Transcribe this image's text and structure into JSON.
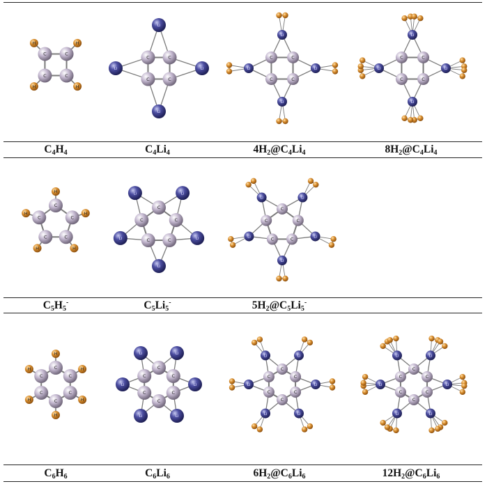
{
  "colors": {
    "carbon": "#c4b8d0",
    "lithium": "#4d4fa3",
    "hydrogen": "#d98e2e",
    "bond": "#7a7a7a"
  },
  "atom_letters": {
    "carbon": "C",
    "lithium": "Li",
    "hydrogen": "H"
  },
  "rows": [
    {
      "cells": [
        {
          "key": "c4h4",
          "label": {
            "parts": [
              [
                "C",
                ""
              ],
              [
                "4",
                "sub"
              ],
              [
                "H",
                ""
              ],
              [
                "4",
                "sub"
              ]
            ]
          }
        },
        {
          "key": "c4li4",
          "label": {
            "parts": [
              [
                "C",
                ""
              ],
              [
                "4",
                "sub"
              ],
              [
                "Li",
                ""
              ],
              [
                "4",
                "sub"
              ]
            ]
          }
        },
        {
          "key": "h4c4li4",
          "label": {
            "parts": [
              [
                "4H",
                ""
              ],
              [
                "2",
                "sub"
              ],
              [
                "@C",
                ""
              ],
              [
                "4",
                "sub"
              ],
              [
                "Li",
                ""
              ],
              [
                "4",
                "sub"
              ]
            ]
          }
        },
        {
          "key": "h8c4li4",
          "label": {
            "parts": [
              [
                "8H",
                ""
              ],
              [
                "2",
                "sub"
              ],
              [
                "@C",
                ""
              ],
              [
                "4",
                "sub"
              ],
              [
                "Li",
                ""
              ],
              [
                "4",
                "sub"
              ]
            ]
          }
        }
      ]
    },
    {
      "cells": [
        {
          "key": "c5h5",
          "label": {
            "parts": [
              [
                "C",
                ""
              ],
              [
                "5",
                "sub"
              ],
              [
                "H",
                ""
              ],
              [
                "5",
                "sub"
              ],
              [
                "-",
                "sup"
              ]
            ]
          }
        },
        {
          "key": "c5li5",
          "label": {
            "parts": [
              [
                "C",
                ""
              ],
              [
                "5",
                "sub"
              ],
              [
                "Li",
                ""
              ],
              [
                "5",
                "sub"
              ],
              [
                "-",
                "sup"
              ]
            ]
          }
        },
        {
          "key": "h5c5li5",
          "label": {
            "parts": [
              [
                "5H",
                ""
              ],
              [
                "2",
                "sub"
              ],
              [
                "@C",
                ""
              ],
              [
                "5",
                "sub"
              ],
              [
                "Li",
                ""
              ],
              [
                "5",
                "sub"
              ],
              [
                "-",
                "sup"
              ]
            ]
          }
        }
      ]
    },
    {
      "cells": [
        {
          "key": "c6h6",
          "label": {
            "parts": [
              [
                "C",
                ""
              ],
              [
                "6",
                "sub"
              ],
              [
                "H",
                ""
              ],
              [
                "6",
                "sub"
              ]
            ]
          }
        },
        {
          "key": "c6li6",
          "label": {
            "parts": [
              [
                "C",
                ""
              ],
              [
                "6",
                "sub"
              ],
              [
                "Li",
                ""
              ],
              [
                "6",
                "sub"
              ]
            ]
          }
        },
        {
          "key": "h6c6li6",
          "label": {
            "parts": [
              [
                "6H",
                ""
              ],
              [
                "2",
                "sub"
              ],
              [
                "@C",
                ""
              ],
              [
                "6",
                "sub"
              ],
              [
                "Li",
                ""
              ],
              [
                "6",
                "sub"
              ]
            ]
          }
        },
        {
          "key": "h12c6li6",
          "label": {
            "parts": [
              [
                "12H",
                ""
              ],
              [
                "2",
                "sub"
              ],
              [
                "@C",
                ""
              ],
              [
                "6",
                "sub"
              ],
              [
                "Li",
                ""
              ],
              [
                "6",
                "sub"
              ]
            ]
          }
        }
      ]
    }
  ]
}
